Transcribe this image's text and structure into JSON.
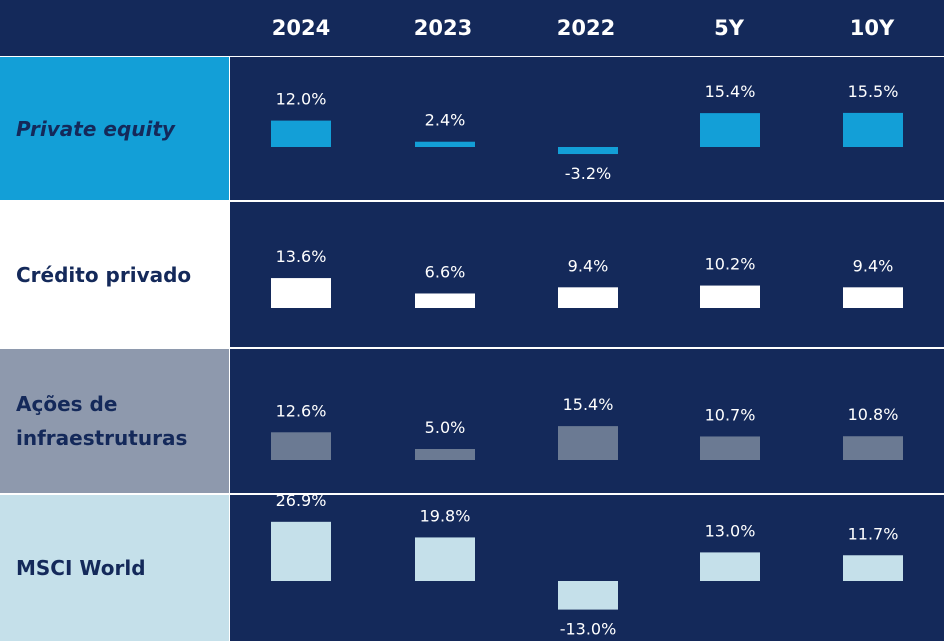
{
  "chart_data": {
    "type": "table",
    "columns": [
      "2024",
      "2023",
      "2022",
      "5Y",
      "10Y"
    ],
    "series": [
      {
        "name": "Private equity",
        "values": [
          12.0,
          2.4,
          -3.2,
          15.4,
          15.5
        ],
        "labels": [
          "12.0%",
          "2.4%",
          "-3.2%",
          "15.4%",
          "15.5%"
        ]
      },
      {
        "name": "Crédito privado",
        "values": [
          13.6,
          6.6,
          9.4,
          10.2,
          9.4
        ],
        "labels": [
          "13.6%",
          "6.6%",
          "9.4%",
          "10.2%",
          "9.4%"
        ]
      },
      {
        "name": "Ações de infraestruturas",
        "values": [
          12.6,
          5.0,
          15.4,
          10.7,
          10.8
        ],
        "labels": [
          "12.6%",
          "5.0%",
          "15.4%",
          "10.7%",
          "10.8%"
        ]
      },
      {
        "name": "MSCI World",
        "values": [
          26.9,
          19.8,
          -13.0,
          13.0,
          11.7
        ],
        "labels": [
          "26.9%",
          "19.8%",
          "-13.0%",
          "13.0%",
          "11.7%"
        ]
      }
    ]
  },
  "colors": {
    "background": "#14295a",
    "header_bar": "#14295a",
    "private_equity": "#139fd7",
    "credito_privado": "#ffffff",
    "acoes_infra": "#6b7a93",
    "acoes_infra_label_bg": "#8e99ad",
    "msci_world": "#c5e0ea",
    "text_light": "#ffffff",
    "text_dark": "#14295a"
  }
}
